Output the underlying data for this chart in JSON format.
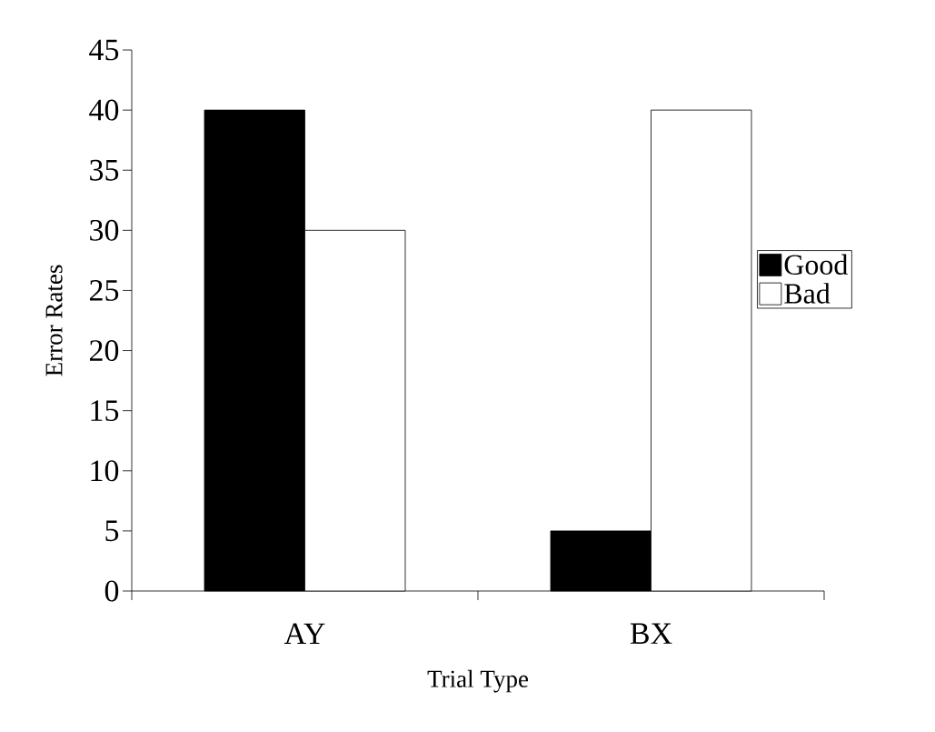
{
  "chart_data": {
    "type": "bar",
    "xlabel": "Trial Type",
    "ylabel": "Error Rates",
    "categories": [
      "AY",
      "BX"
    ],
    "series": [
      {
        "name": "Good",
        "color": "#000000",
        "values": [
          40,
          5
        ]
      },
      {
        "name": "Bad",
        "color": "#ffffff",
        "values": [
          30,
          40
        ]
      }
    ],
    "ylim": [
      0,
      45
    ],
    "yticks": [
      0,
      5,
      10,
      15,
      20,
      25,
      30,
      35,
      40,
      45
    ],
    "grid": false,
    "legend": "right"
  }
}
